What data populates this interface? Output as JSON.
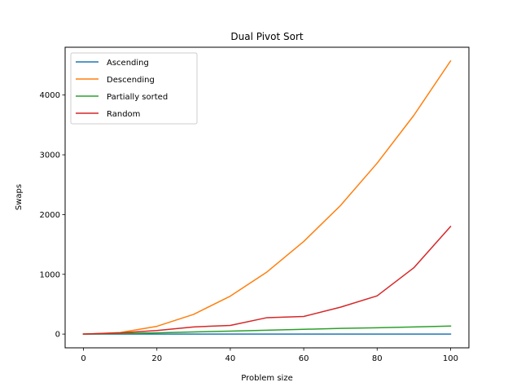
{
  "chart_data": {
    "type": "line",
    "title": "Dual Pivot Sort",
    "xlabel": "Problem size",
    "ylabel": "Swaps",
    "xlim": [
      -5,
      105
    ],
    "ylim": [
      -230,
      4800
    ],
    "xticks": [
      0,
      20,
      40,
      60,
      80,
      100
    ],
    "yticks": [
      0,
      1000,
      2000,
      3000,
      4000
    ],
    "grid": false,
    "legend_position": "upper-left",
    "x": [
      0,
      10,
      20,
      30,
      40,
      50,
      60,
      70,
      80,
      90,
      100
    ],
    "series": [
      {
        "name": "Ascending",
        "color": "#1f77b4",
        "values": [
          0,
          0,
          0,
          0,
          0,
          0,
          0,
          0,
          0,
          0,
          0
        ]
      },
      {
        "name": "Descending",
        "color": "#ff7f0e",
        "values": [
          0,
          25,
          130,
          330,
          635,
          1040,
          1550,
          2150,
          2860,
          3660,
          4570
        ]
      },
      {
        "name": "Partially sorted",
        "color": "#2ca02c",
        "values": [
          0,
          10,
          20,
          35,
          50,
          65,
          80,
          95,
          105,
          120,
          135
        ]
      },
      {
        "name": "Random",
        "color": "#d62728",
        "values": [
          0,
          20,
          60,
          120,
          145,
          275,
          295,
          450,
          640,
          1110,
          1800
        ]
      }
    ]
  }
}
